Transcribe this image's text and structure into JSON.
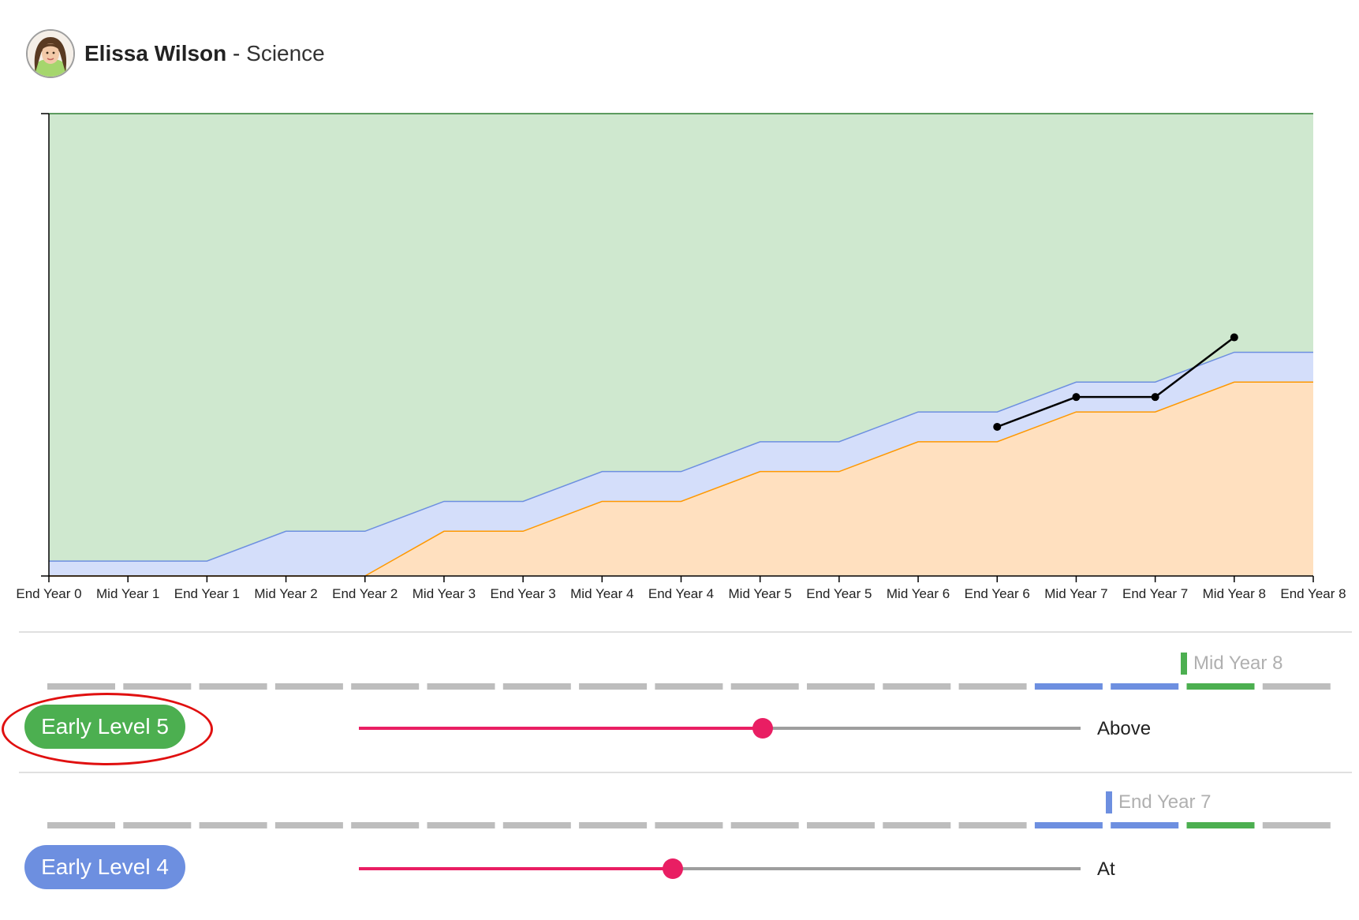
{
  "student": {
    "name": "Elissa Wilson",
    "separator": " - ",
    "subject": "Science"
  },
  "chart_data": {
    "type": "area",
    "title": "",
    "xlabel": "",
    "ylabel": "",
    "categories": [
      "End Year 0",
      "Mid Year 1",
      "End Year 1",
      "Mid Year 2",
      "End Year 2",
      "Mid Year 3",
      "End Year 3",
      "Mid Year 4",
      "End Year 4",
      "Mid Year 5",
      "End Year 5",
      "Mid Year 6",
      "End Year 6",
      "Mid Year 7",
      "End Year 7",
      "Mid Year 8",
      "End Year 8"
    ],
    "ylim": [
      0,
      31
    ],
    "series": [
      {
        "values": [
          0,
          0,
          0,
          0,
          0,
          3,
          3,
          5,
          5,
          7,
          7,
          9,
          9,
          11,
          11,
          13,
          13
        ]
      },
      {
        "values": [
          1,
          1,
          1,
          3,
          3,
          5,
          5,
          7,
          7,
          9,
          9,
          11,
          11,
          13,
          13,
          15,
          15
        ]
      },
      {
        "values": [
          31,
          31,
          31,
          31,
          31,
          31,
          31,
          31,
          31,
          31,
          31,
          31,
          31,
          31,
          31,
          31,
          31
        ]
      },
      {
        "values": [
          null,
          null,
          null,
          null,
          null,
          null,
          null,
          null,
          null,
          null,
          null,
          null,
          10,
          12,
          12,
          16,
          null
        ]
      }
    ],
    "grid": false,
    "colors": {
      "below": "#ffe0bf",
      "below_line": "#ff9800",
      "at": "#d4defa",
      "at_line": "#6d8fe0",
      "above": "#cfe8cf",
      "above_line": "#2e7d32",
      "student": "#000000"
    }
  },
  "rows": [
    {
      "marker_label": "Mid Year 8",
      "marker_color": "#4caf50",
      "dash_colors": [
        "#bdbdbd",
        "#bdbdbd",
        "#bdbdbd",
        "#bdbdbd",
        "#bdbdbd",
        "#bdbdbd",
        "#bdbdbd",
        "#bdbdbd",
        "#bdbdbd",
        "#bdbdbd",
        "#bdbdbd",
        "#bdbdbd",
        "#bdbdbd",
        "#6d8fe0",
        "#6d8fe0",
        "#4caf50",
        "#bdbdbd"
      ],
      "level_label": "Early Level 5",
      "level_color": "#4caf50",
      "slider_value": 0.56,
      "slider_color": "#e91e63",
      "status": "Above"
    },
    {
      "marker_label": "End Year 7",
      "marker_color": "#6d8fe0",
      "dash_colors": [
        "#bdbdbd",
        "#bdbdbd",
        "#bdbdbd",
        "#bdbdbd",
        "#bdbdbd",
        "#bdbdbd",
        "#bdbdbd",
        "#bdbdbd",
        "#bdbdbd",
        "#bdbdbd",
        "#bdbdbd",
        "#bdbdbd",
        "#bdbdbd",
        "#6d8fe0",
        "#6d8fe0",
        "#4caf50",
        "#bdbdbd"
      ],
      "level_label": "Early Level 4",
      "level_color": "#6d8fe0",
      "slider_value": 0.435,
      "slider_color": "#e91e63",
      "status": "At"
    }
  ]
}
